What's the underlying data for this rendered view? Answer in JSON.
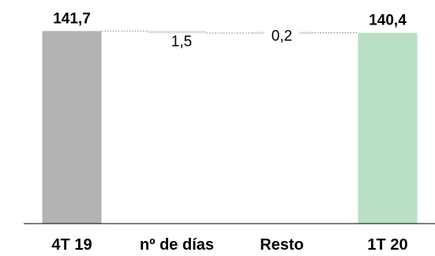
{
  "chart_data": {
    "type": "waterfall",
    "title": "",
    "xlabel": "",
    "ylabel": "",
    "categories": [
      "4T 19",
      "nº de días",
      "Resto",
      "1T 20"
    ],
    "values": [
      141.7,
      -1.5,
      0.2,
      140.4
    ],
    "bar_kinds": [
      "total",
      "delta",
      "delta",
      "total"
    ],
    "data_labels": [
      "141,7",
      "1,5",
      "0,2",
      "140,4"
    ],
    "colors": {
      "start_total": "#b3b3b3",
      "delta": "#e0e0e0",
      "end_total": "#b9dfc5",
      "connector": "#9a9a9a",
      "axis": "#000000"
    }
  }
}
